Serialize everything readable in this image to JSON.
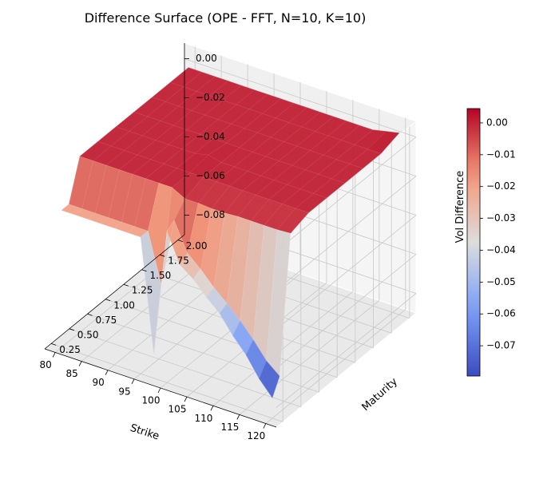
{
  "chart_data": {
    "type": "surface",
    "title": "Difference Surface (OPE - FFT, N=10, K=10)",
    "xlabel": "Strike",
    "ylabel": "Maturity",
    "zlabel": "Vol Difference",
    "xlim": [
      78,
      122
    ],
    "ylim": [
      0.16,
      2.09
    ],
    "zlim": [
      -0.09,
      0.008
    ],
    "x_ticks": [
      "80",
      "85",
      "90",
      "95",
      "100",
      "105",
      "110",
      "115",
      "120"
    ],
    "y_ticks": [
      "0.25",
      "0.50",
      "0.75",
      "1.00",
      "1.25",
      "1.50",
      "1.75",
      "2.00"
    ],
    "z_ticks": [
      "0.00",
      "−0.02",
      "−0.04",
      "−0.06",
      "−0.08"
    ],
    "colorbar": {
      "colormap": "coolwarm",
      "min": -0.0795,
      "max": 0.0045,
      "ticks": [
        "0.00",
        "−0.01",
        "−0.02",
        "−0.03",
        "−0.04",
        "−0.05",
        "−0.06",
        "−0.07"
      ]
    },
    "grid": true,
    "strike": [
      80,
      82.5,
      85,
      87.5,
      90,
      92.5,
      95,
      97.5,
      100,
      102.5,
      105,
      107.5,
      110,
      112.5,
      115,
      117.5,
      120
    ],
    "maturity": [
      0.25,
      0.35,
      0.5,
      0.75,
      1.0,
      1.25,
      1.5,
      1.75,
      2.0
    ],
    "vol_difference": [
      [
        -0.02,
        -0.02,
        -0.02,
        -0.02,
        -0.02,
        -0.02,
        -0.02,
        -0.0775,
        -0.0125,
        -0.0275,
        -0.0325,
        -0.0395,
        -0.0455,
        -0.0545,
        -0.062,
        -0.072,
        -0.0795
      ],
      [
        -0.02,
        -0.02,
        -0.02,
        -0.02,
        -0.02,
        -0.02,
        -0.02,
        -0.045,
        -0.01,
        -0.0245,
        -0.0305,
        -0.0375,
        -0.0435,
        -0.05,
        -0.0575,
        -0.066,
        -0.0715
      ],
      [
        0,
        0,
        0,
        0,
        0,
        0,
        0,
        0,
        -0.0035,
        -0.0035,
        -0.004,
        -0.004,
        -0.0035,
        -0.0035,
        -0.0035,
        -0.0035,
        -0.003
      ],
      [
        0,
        0,
        0,
        0,
        0,
        0,
        0,
        0,
        0,
        0,
        0,
        0,
        0,
        0,
        0,
        0,
        0
      ],
      [
        0,
        0,
        0,
        0,
        0,
        0,
        0,
        0.0015,
        0,
        0,
        0,
        0,
        0,
        0,
        0,
        0,
        0
      ],
      [
        0,
        0,
        0,
        0,
        0,
        0,
        0,
        0,
        0,
        0,
        0,
        0,
        0,
        0,
        0,
        0,
        0
      ],
      [
        0,
        0,
        0,
        0,
        0,
        0,
        0,
        0,
        0,
        0,
        0,
        0,
        0,
        0,
        0,
        0,
        0
      ],
      [
        0,
        0,
        0,
        0,
        0,
        0,
        0,
        0,
        0,
        0,
        0,
        0,
        0,
        0,
        0,
        0,
        0
      ],
      [
        0,
        0,
        0,
        0,
        0,
        0,
        0,
        0,
        0,
        0,
        0,
        0,
        0,
        0,
        0,
        0.0015,
        0.003
      ]
    ]
  }
}
